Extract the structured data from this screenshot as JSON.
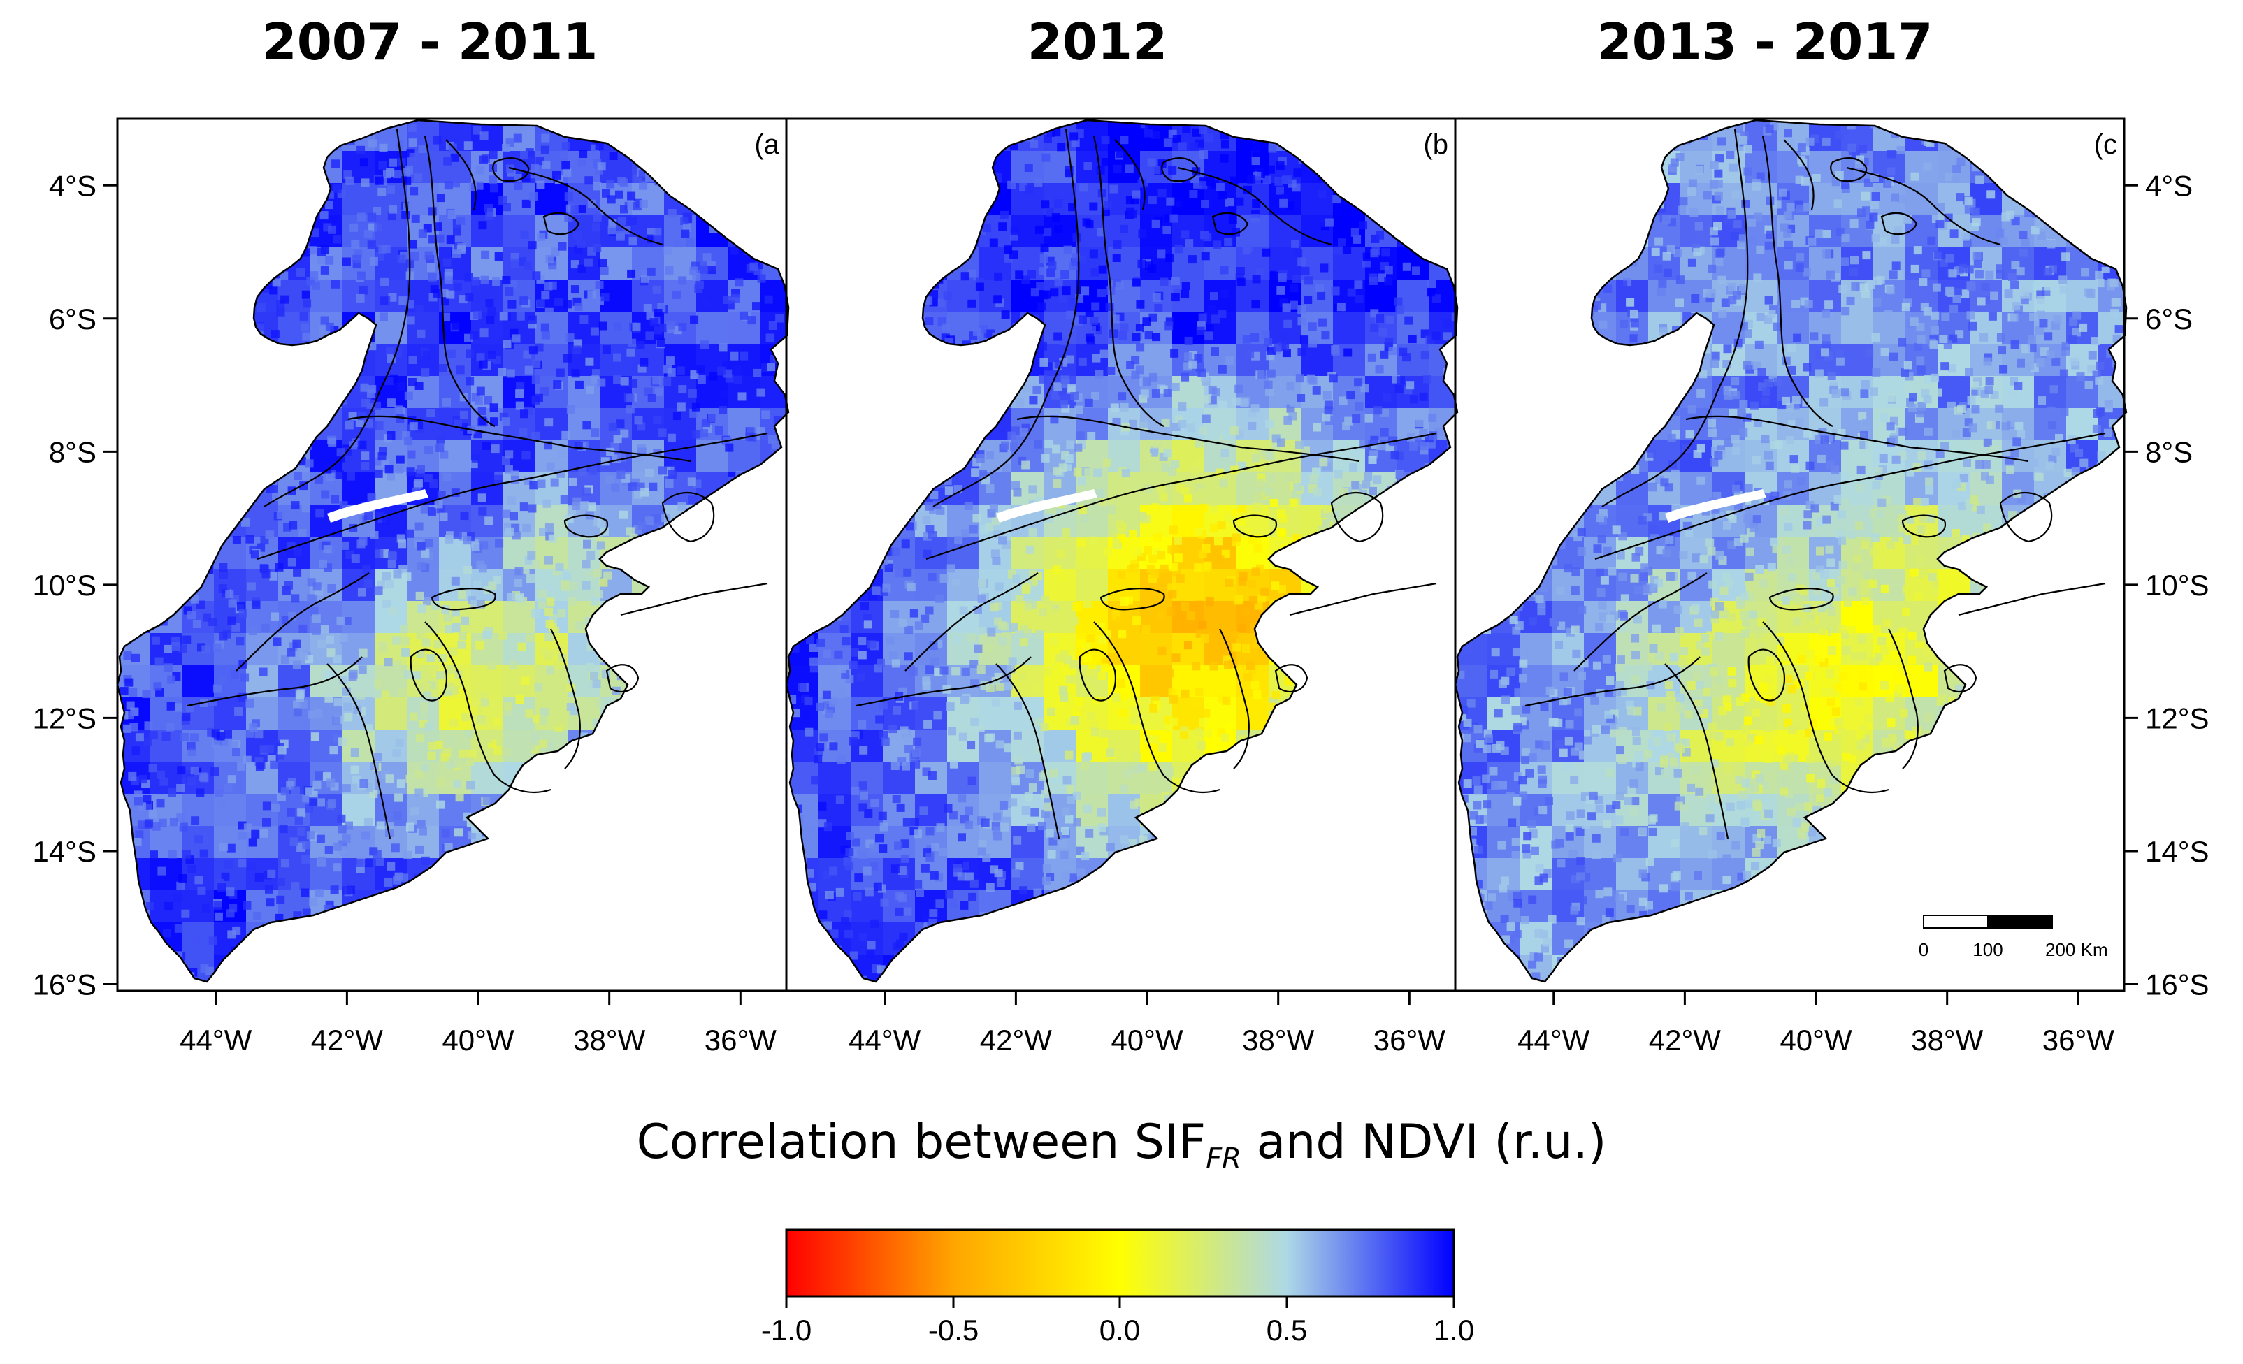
{
  "panels": [
    {
      "title": "2007 - 2011",
      "label": "(a",
      "period": "2007-2011"
    },
    {
      "title": "2012",
      "label": "(b",
      "period": "2012"
    },
    {
      "title": "2013 - 2017",
      "label": "(c",
      "period": "2013-2017"
    }
  ],
  "axes": {
    "x_ticks": [
      "44°W",
      "42°W",
      "40°W",
      "38°W",
      "36°W"
    ],
    "y_ticks": [
      "4°S",
      "6°S",
      "8°S",
      "10°S",
      "12°S",
      "14°S",
      "16°S"
    ],
    "lon_range": [
      -45.5,
      -35.3
    ],
    "lat_range": [
      -16.1,
      -3.0
    ]
  },
  "scale_bar": {
    "labels": [
      "0",
      "100",
      "200 Km"
    ]
  },
  "legend": {
    "title_main": "Correlation between SIF",
    "title_sub": "FR",
    "title_tail": " and NDVI (r.u.)",
    "ticks": [
      "-1.0",
      "-0.5",
      "0.0",
      "0.5",
      "1.0"
    ],
    "range": [
      -1.0,
      1.0
    ],
    "colors": [
      "#ff0000",
      "#ffa500",
      "#ffff00",
      "#add8e6",
      "#0000ff"
    ]
  }
}
